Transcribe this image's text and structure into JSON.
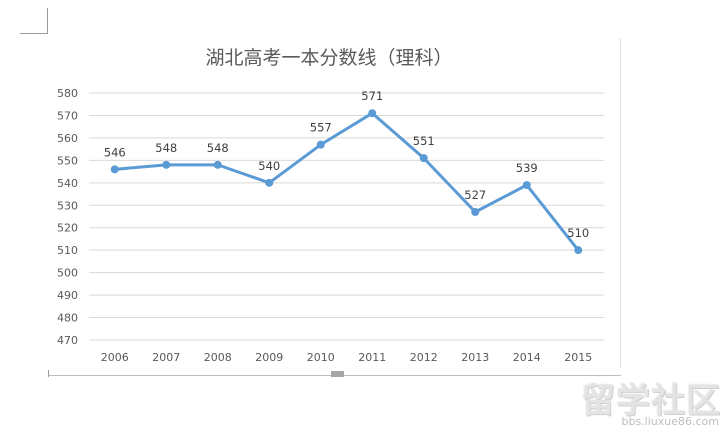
{
  "chart_data": {
    "type": "line",
    "title": "湖北高考一本分数线（理科）",
    "xlabel": "",
    "ylabel": "",
    "categories": [
      "2006",
      "2007",
      "2008",
      "2009",
      "2010",
      "2011",
      "2012",
      "2013",
      "2014",
      "2015"
    ],
    "series": [
      {
        "values": [
          546,
          548,
          548,
          540,
          557,
          571,
          551,
          527,
          539,
          510
        ]
      }
    ],
    "data_labels": [
      "546",
      "548",
      "548",
      "540",
      "557",
      "571",
      "551",
      "527",
      "539",
      "510"
    ],
    "ylim": [
      470,
      580
    ],
    "yticks": [
      "470",
      "480",
      "490",
      "500",
      "510",
      "520",
      "530",
      "540",
      "550",
      "560",
      "570",
      "580"
    ],
    "grid": true,
    "legend": "none",
    "line_color": "#5b9bd5",
    "grid_color": "#d9d9d9"
  },
  "watermark": {
    "logo_text": "留学社区",
    "url_text": "bbs.liuxue86.com"
  }
}
